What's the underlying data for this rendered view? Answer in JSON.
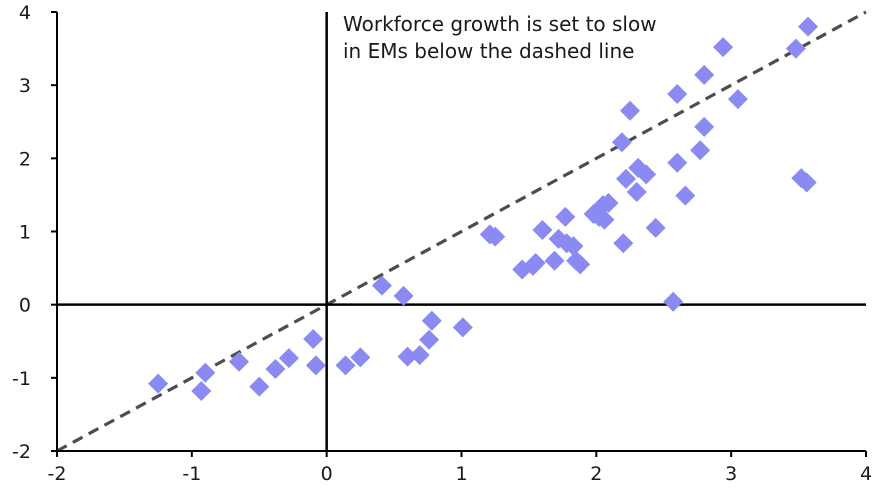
{
  "chart_data": {
    "type": "scatter",
    "title": "",
    "xlabel": "",
    "ylabel": "",
    "xlim": [
      -2,
      4
    ],
    "ylim": [
      -2,
      4
    ],
    "x_ticks": [
      -2,
      -1,
      0,
      1,
      2,
      3,
      4
    ],
    "y_ticks": [
      -2,
      -1,
      0,
      1,
      2,
      3,
      4
    ],
    "x_tick_labels": [
      "-2",
      "-1",
      "0",
      "1",
      "2",
      "3",
      "4"
    ],
    "y_tick_labels": [
      "-2",
      "-1",
      "0",
      "1",
      "2",
      "3",
      "4"
    ],
    "grid": false,
    "legend": "none",
    "marker": "diamond",
    "marker_color": "#8a8af2",
    "reference_line": {
      "style": "dashed",
      "color": "#4d4d4d",
      "slope": 1,
      "intercept": 0
    },
    "annotation": {
      "lines": [
        "Workforce growth is set to slow",
        "in EMs below the dashed line"
      ]
    },
    "points": [
      {
        "x": -1.25,
        "y": -1.08
      },
      {
        "x": -0.93,
        "y": -1.18
      },
      {
        "x": -0.9,
        "y": -0.93
      },
      {
        "x": -0.65,
        "y": -0.78
      },
      {
        "x": -0.5,
        "y": -1.12
      },
      {
        "x": -0.38,
        "y": -0.88
      },
      {
        "x": -0.28,
        "y": -0.73
      },
      {
        "x": -0.1,
        "y": -0.47
      },
      {
        "x": -0.08,
        "y": -0.83
      },
      {
        "x": 0.14,
        "y": -0.83
      },
      {
        "x": 0.25,
        "y": -0.72
      },
      {
        "x": 0.41,
        "y": 0.26
      },
      {
        "x": 0.57,
        "y": 0.12
      },
      {
        "x": 0.6,
        "y": -0.71
      },
      {
        "x": 0.69,
        "y": -0.69
      },
      {
        "x": 0.76,
        "y": -0.48
      },
      {
        "x": 0.78,
        "y": -0.22
      },
      {
        "x": 1.01,
        "y": -0.31
      },
      {
        "x": 1.21,
        "y": 0.96
      },
      {
        "x": 1.25,
        "y": 0.93
      },
      {
        "x": 1.45,
        "y": 0.48
      },
      {
        "x": 1.53,
        "y": 0.53
      },
      {
        "x": 1.55,
        "y": 0.57
      },
      {
        "x": 1.6,
        "y": 1.02
      },
      {
        "x": 1.69,
        "y": 0.6
      },
      {
        "x": 1.72,
        "y": 0.9
      },
      {
        "x": 1.77,
        "y": 1.2
      },
      {
        "x": 1.78,
        "y": 0.84
      },
      {
        "x": 1.83,
        "y": 0.8
      },
      {
        "x": 1.85,
        "y": 0.6
      },
      {
        "x": 1.88,
        "y": 0.55
      },
      {
        "x": 1.98,
        "y": 1.24
      },
      {
        "x": 2.02,
        "y": 1.2
      },
      {
        "x": 2.05,
        "y": 1.36
      },
      {
        "x": 2.06,
        "y": 1.16
      },
      {
        "x": 2.09,
        "y": 1.39
      },
      {
        "x": 2.19,
        "y": 2.22
      },
      {
        "x": 2.2,
        "y": 0.84
      },
      {
        "x": 2.22,
        "y": 1.72
      },
      {
        "x": 2.25,
        "y": 2.65
      },
      {
        "x": 2.3,
        "y": 1.54
      },
      {
        "x": 2.31,
        "y": 1.87
      },
      {
        "x": 2.37,
        "y": 1.78
      },
      {
        "x": 2.44,
        "y": 1.05
      },
      {
        "x": 2.57,
        "y": 0.04
      },
      {
        "x": 2.6,
        "y": 1.94
      },
      {
        "x": 2.6,
        "y": 2.88
      },
      {
        "x": 2.66,
        "y": 1.49
      },
      {
        "x": 2.77,
        "y": 2.11
      },
      {
        "x": 2.8,
        "y": 2.43
      },
      {
        "x": 2.8,
        "y": 3.14
      },
      {
        "x": 2.94,
        "y": 3.52
      },
      {
        "x": 3.05,
        "y": 2.81
      },
      {
        "x": 3.48,
        "y": 3.5
      },
      {
        "x": 3.52,
        "y": 1.73
      },
      {
        "x": 3.56,
        "y": 1.67
      },
      {
        "x": 3.57,
        "y": 3.8
      }
    ]
  }
}
